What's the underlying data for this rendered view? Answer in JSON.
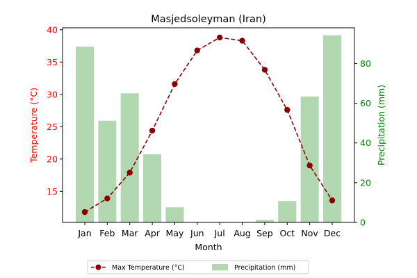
{
  "chart_data": {
    "type": "bar+line",
    "title": "Masjedsoleyman (Iran)",
    "xlabel": "Month",
    "ylabel_left": "Temperature (°C)",
    "ylabel_right": "Precipitation (mm)",
    "categories": [
      "Jan",
      "Feb",
      "Mar",
      "Apr",
      "May",
      "Jun",
      "Jul",
      "Aug",
      "Sep",
      "Oct",
      "Nov",
      "Dec"
    ],
    "left_axis": {
      "ylim": [
        10.2,
        40.3
      ],
      "ticks": [
        15,
        20,
        25,
        30,
        35,
        40
      ]
    },
    "right_axis": {
      "ylim": [
        0,
        98
      ],
      "ticks": [
        0,
        20,
        40,
        60,
        80
      ]
    },
    "series": [
      {
        "name": "Max Temperature (°C)",
        "type": "line",
        "axis": "left",
        "color": "#8b0000",
        "style": "dashed",
        "marker": "circle",
        "values": [
          11.8,
          13.9,
          17.9,
          24.4,
          31.6,
          36.8,
          38.8,
          38.3,
          33.8,
          27.6,
          19.0,
          13.6
        ]
      },
      {
        "name": "Precipitation (mm)",
        "type": "bar",
        "axis": "right",
        "color": "#b1d8b1",
        "values": [
          88.5,
          51.2,
          65.0,
          34.3,
          7.6,
          0,
          0,
          0,
          1.2,
          10.8,
          63.4,
          94.2
        ]
      }
    ],
    "legend": {
      "position": "bottom-center"
    },
    "colors": {
      "left_axis": "#ff0000",
      "right_axis": "#008000",
      "text": "#000000"
    }
  }
}
